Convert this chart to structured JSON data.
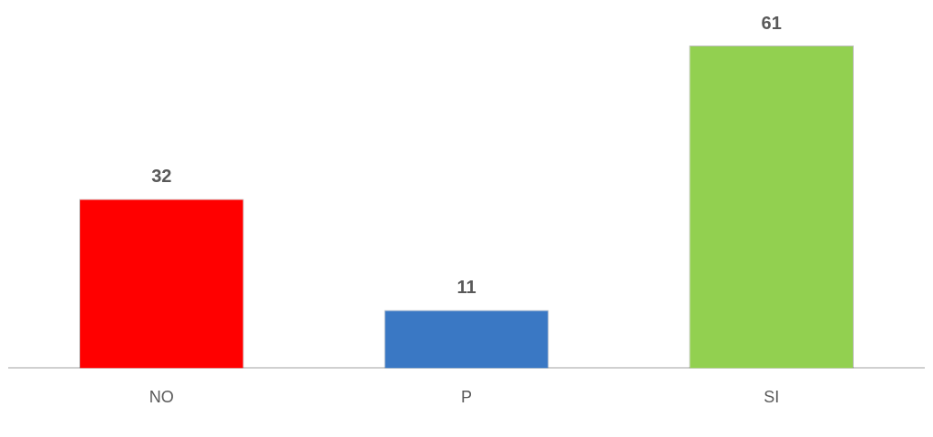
{
  "chart_data": {
    "type": "bar",
    "categories": [
      "NO",
      "P",
      "SI"
    ],
    "values": [
      32,
      11,
      61
    ],
    "colors": [
      "#ff0000",
      "#3a78c4",
      "#92d050"
    ],
    "data_labels": true,
    "grid": false,
    "legend": false
  }
}
